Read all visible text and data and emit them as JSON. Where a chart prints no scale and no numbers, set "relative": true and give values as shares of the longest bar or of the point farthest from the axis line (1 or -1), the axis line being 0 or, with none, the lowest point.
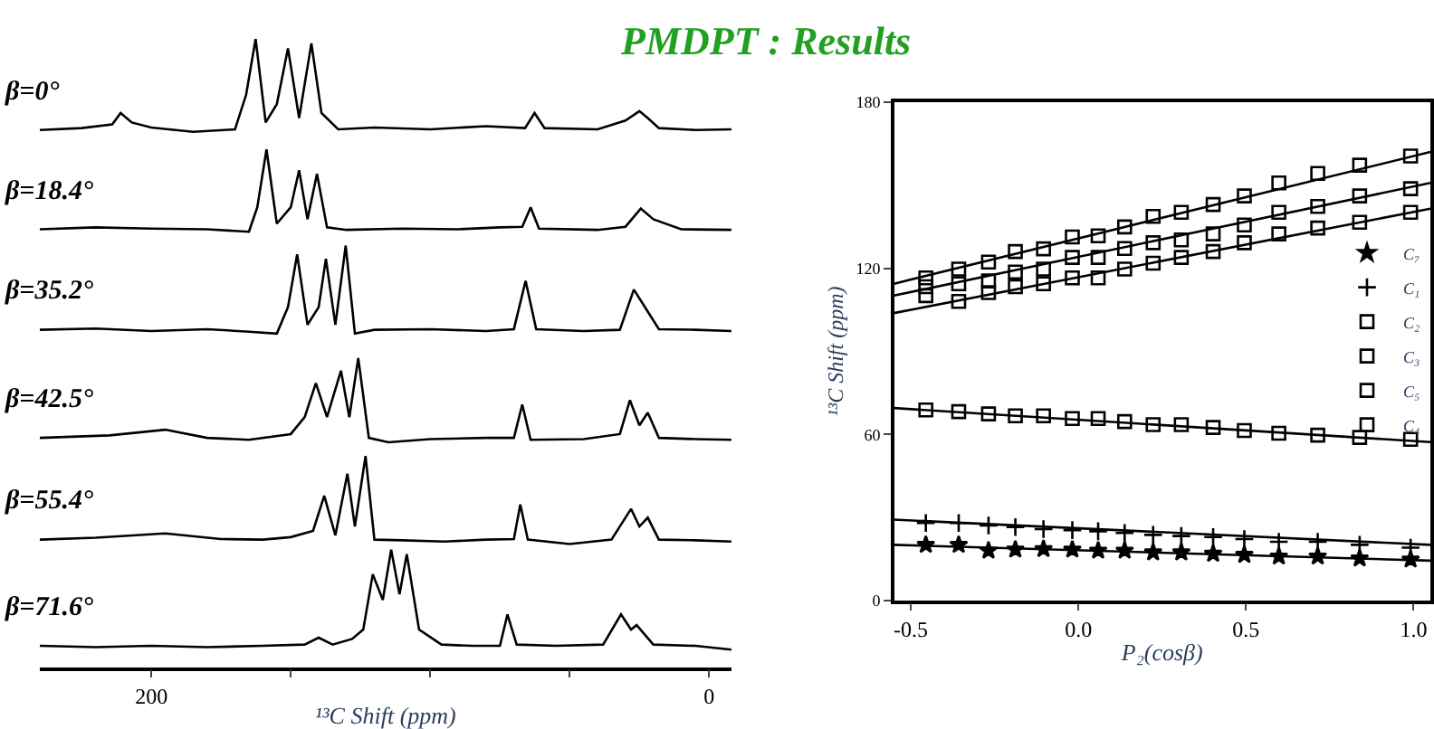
{
  "chart_data": [
    {
      "type": "line",
      "title": "PMDPT : Results",
      "relative": true,
      "xlabel": "¹³C Shift (ppm)",
      "xlim": [
        240,
        -8
      ],
      "xticks": [
        200,
        {
          "value": 150,
          "label": null
        },
        {
          "value": 100,
          "label": null
        },
        {
          "value": 50,
          "label": null
        },
        0
      ],
      "tick_labels": "x",
      "legend": false,
      "series": [
        {
          "name": "β=0°",
          "color": "#000000",
          "x": [
            240,
            225,
            214,
            211,
            207,
            200,
            185,
            170,
            166,
            162.6,
            159,
            155,
            151,
            147,
            142.6,
            139,
            133,
            120,
            100,
            80,
            66,
            62.6,
            59,
            40,
            30,
            25,
            22,
            18,
            5,
            -8
          ],
          "values": [
            0.855,
            0.858,
            0.864,
            0.882,
            0.867,
            0.859,
            0.852,
            0.856,
            0.911,
            1.0,
            0.867,
            0.896,
            0.985,
            0.874,
            0.993,
            0.882,
            0.856,
            0.859,
            0.856,
            0.861,
            0.858,
            0.882,
            0.858,
            0.856,
            0.87,
            0.885,
            0.874,
            0.858,
            0.855,
            0.856
          ]
        },
        {
          "name": "β=18.4°",
          "color": "#000000",
          "x": [
            240,
            220,
            200,
            180,
            165,
            162,
            158.7,
            155,
            150,
            147,
            144,
            140.6,
            137,
            130,
            110,
            90,
            75,
            67,
            64,
            61,
            40,
            30,
            24.5,
            20,
            10,
            -8
          ],
          "values": [
            0.697,
            0.7,
            0.698,
            0.697,
            0.693,
            0.732,
            0.824,
            0.706,
            0.732,
            0.791,
            0.713,
            0.785,
            0.7,
            0.696,
            0.698,
            0.697,
            0.7,
            0.701,
            0.732,
            0.698,
            0.696,
            0.701,
            0.73,
            0.713,
            0.697,
            0.696
          ]
        },
        {
          "name": "β=35.2°",
          "color": "#000000",
          "x": [
            240,
            220,
            200,
            180,
            165,
            155,
            151,
            147.7,
            144,
            140,
            137.4,
            134,
            130.3,
            127,
            120,
            100,
            80,
            70,
            65.8,
            62,
            45,
            32,
            27,
            22,
            18,
            5,
            -8
          ],
          "values": [
            0.537,
            0.539,
            0.535,
            0.538,
            0.534,
            0.531,
            0.573,
            0.657,
            0.545,
            0.573,
            0.65,
            0.545,
            0.671,
            0.531,
            0.537,
            0.538,
            0.535,
            0.538,
            0.615,
            0.538,
            0.535,
            0.537,
            0.601,
            0.566,
            0.538,
            0.537,
            0.535
          ]
        },
        {
          "name": "β=42.5°",
          "color": "#000000",
          "x": [
            240,
            215,
            195,
            180,
            165,
            150,
            145,
            141,
            137,
            132,
            129,
            125.8,
            122,
            115,
            100,
            80,
            70,
            67,
            64,
            45,
            32,
            28.4,
            25,
            22,
            18,
            5,
            -8
          ],
          "values": [
            0.365,
            0.369,
            0.378,
            0.365,
            0.362,
            0.371,
            0.398,
            0.452,
            0.398,
            0.472,
            0.398,
            0.492,
            0.365,
            0.358,
            0.363,
            0.365,
            0.365,
            0.418,
            0.362,
            0.363,
            0.371,
            0.425,
            0.385,
            0.405,
            0.365,
            0.363,
            0.362
          ]
        },
        {
          "name": "β=55.4°",
          "color": "#000000",
          "x": [
            240,
            220,
            195,
            175,
            160,
            150,
            142,
            138,
            134,
            129.7,
            127,
            123.2,
            120,
            110,
            95,
            80,
            70,
            67.7,
            65,
            50,
            35,
            28,
            25,
            22,
            18,
            5,
            -8
          ],
          "values": [
            0.203,
            0.206,
            0.213,
            0.204,
            0.203,
            0.207,
            0.217,
            0.273,
            0.21,
            0.308,
            0.224,
            0.336,
            0.203,
            0.202,
            0.2,
            0.203,
            0.204,
            0.259,
            0.203,
            0.196,
            0.203,
            0.252,
            0.224,
            0.238,
            0.203,
            0.202,
            0.2
          ]
        },
        {
          "name": "β=71.6°",
          "color": "#000000",
          "x": [
            240,
            220,
            200,
            180,
            160,
            145,
            140,
            135,
            128,
            124,
            120.6,
            117,
            114,
            111,
            108.4,
            104,
            96,
            85,
            75,
            72.3,
            69,
            55,
            38,
            31.6,
            28,
            26,
            20,
            5,
            -8
          ],
          "values": [
            0.034,
            0.032,
            0.034,
            0.032,
            0.034,
            0.036,
            0.047,
            0.036,
            0.045,
            0.06,
            0.148,
            0.107,
            0.187,
            0.116,
            0.18,
            0.06,
            0.036,
            0.034,
            0.034,
            0.084,
            0.036,
            0.034,
            0.036,
            0.084,
            0.06,
            0.067,
            0.036,
            0.034,
            0.028
          ]
        }
      ]
    },
    {
      "type": "scatter",
      "xlabel": "P₂(cosβ)",
      "ylabel": "¹³C Shift (ppm)",
      "xlim": [
        -0.55,
        1.05
      ],
      "ylim": [
        0,
        180
      ],
      "xticks": [
        {
          "value": -0.5,
          "label": "-0.5"
        },
        {
          "value": 0,
          "label": "0.0"
        },
        {
          "value": 0.5,
          "label": "0.5"
        },
        {
          "value": 1,
          "label": "1.0"
        }
      ],
      "yticks": [
        0,
        60,
        120,
        180
      ],
      "legend": "right",
      "x": [
        -0.455,
        -0.357,
        -0.268,
        -0.188,
        -0.104,
        -0.018,
        0.059,
        0.138,
        0.223,
        0.307,
        0.402,
        0.495,
        0.598,
        0.714,
        0.839,
        0.991
      ],
      "series": [
        {
          "name": "C₇",
          "color": "#000000",
          "marker": "star",
          "values": [
            20.1,
            20.1,
            18,
            18.4,
            18.6,
            18.4,
            18,
            18,
            17.4,
            17.4,
            16.9,
            16.5,
            15.9,
            15.9,
            15.2,
            14.8
          ]
        },
        {
          "name": "C₁",
          "color": "#000000",
          "marker": "cross",
          "values": [
            28,
            28,
            27.1,
            26.5,
            25.8,
            25.4,
            25,
            24.4,
            23.7,
            23.3,
            22.9,
            22.2,
            21.2,
            21.2,
            20.1,
            19.1
          ]
        },
        {
          "name": "C₂",
          "color": "#000000",
          "marker": "square",
          "values": [
            68.8,
            68.2,
            67.4,
            66.7,
            66.7,
            65.7,
            65.7,
            64.6,
            63.5,
            63.5,
            62.5,
            61.4,
            60.4,
            59.7,
            58.9,
            58.2
          ]
        },
        {
          "name": "C₃",
          "color": "#000000",
          "marker": "square",
          "values": [
            110.1,
            108,
            111.2,
            113.3,
            114.4,
            116.5,
            116.5,
            119.7,
            121.8,
            123.9,
            126,
            129.2,
            132.4,
            134.5,
            136.6,
            140.2
          ]
        },
        {
          "name": "C₅",
          "color": "#000000",
          "marker": "square",
          "values": [
            113.3,
            114.4,
            115.4,
            118.6,
            119.7,
            123.9,
            123.9,
            127.1,
            129.2,
            130.2,
            132.4,
            135.6,
            140.2,
            142.3,
            146.1,
            148.7
          ]
        },
        {
          "name": "C₄",
          "color": "#000000",
          "marker": "square",
          "values": [
            116.5,
            119.7,
            122.2,
            126,
            127,
            131.3,
            131.7,
            134.9,
            138.7,
            140.2,
            143,
            146.1,
            150.8,
            154.2,
            157.2,
            160.5
          ]
        },
        {
          "type": "line",
          "color": "#000000",
          "x": [
            -0.55,
            1.05
          ],
          "values": [
            20.1,
            14.4
          ]
        },
        {
          "type": "line",
          "color": "#000000",
          "x": [
            -0.55,
            1.05
          ],
          "values": [
            29.2,
            20.1
          ]
        },
        {
          "type": "line",
          "color": "#000000",
          "x": [
            -0.55,
            1.05
          ],
          "values": [
            69.5,
            57.2
          ]
        },
        {
          "type": "line",
          "color": "#000000",
          "x": [
            -0.55,
            1.05
          ],
          "values": [
            103.8,
            141.5
          ]
        },
        {
          "type": "line",
          "color": "#000000",
          "x": [
            -0.55,
            1.05
          ],
          "values": [
            110.1,
            150.8
          ]
        },
        {
          "type": "line",
          "color": "#000000",
          "x": [
            -0.55,
            1.05
          ],
          "values": [
            114.4,
            162
          ]
        }
      ]
    }
  ]
}
